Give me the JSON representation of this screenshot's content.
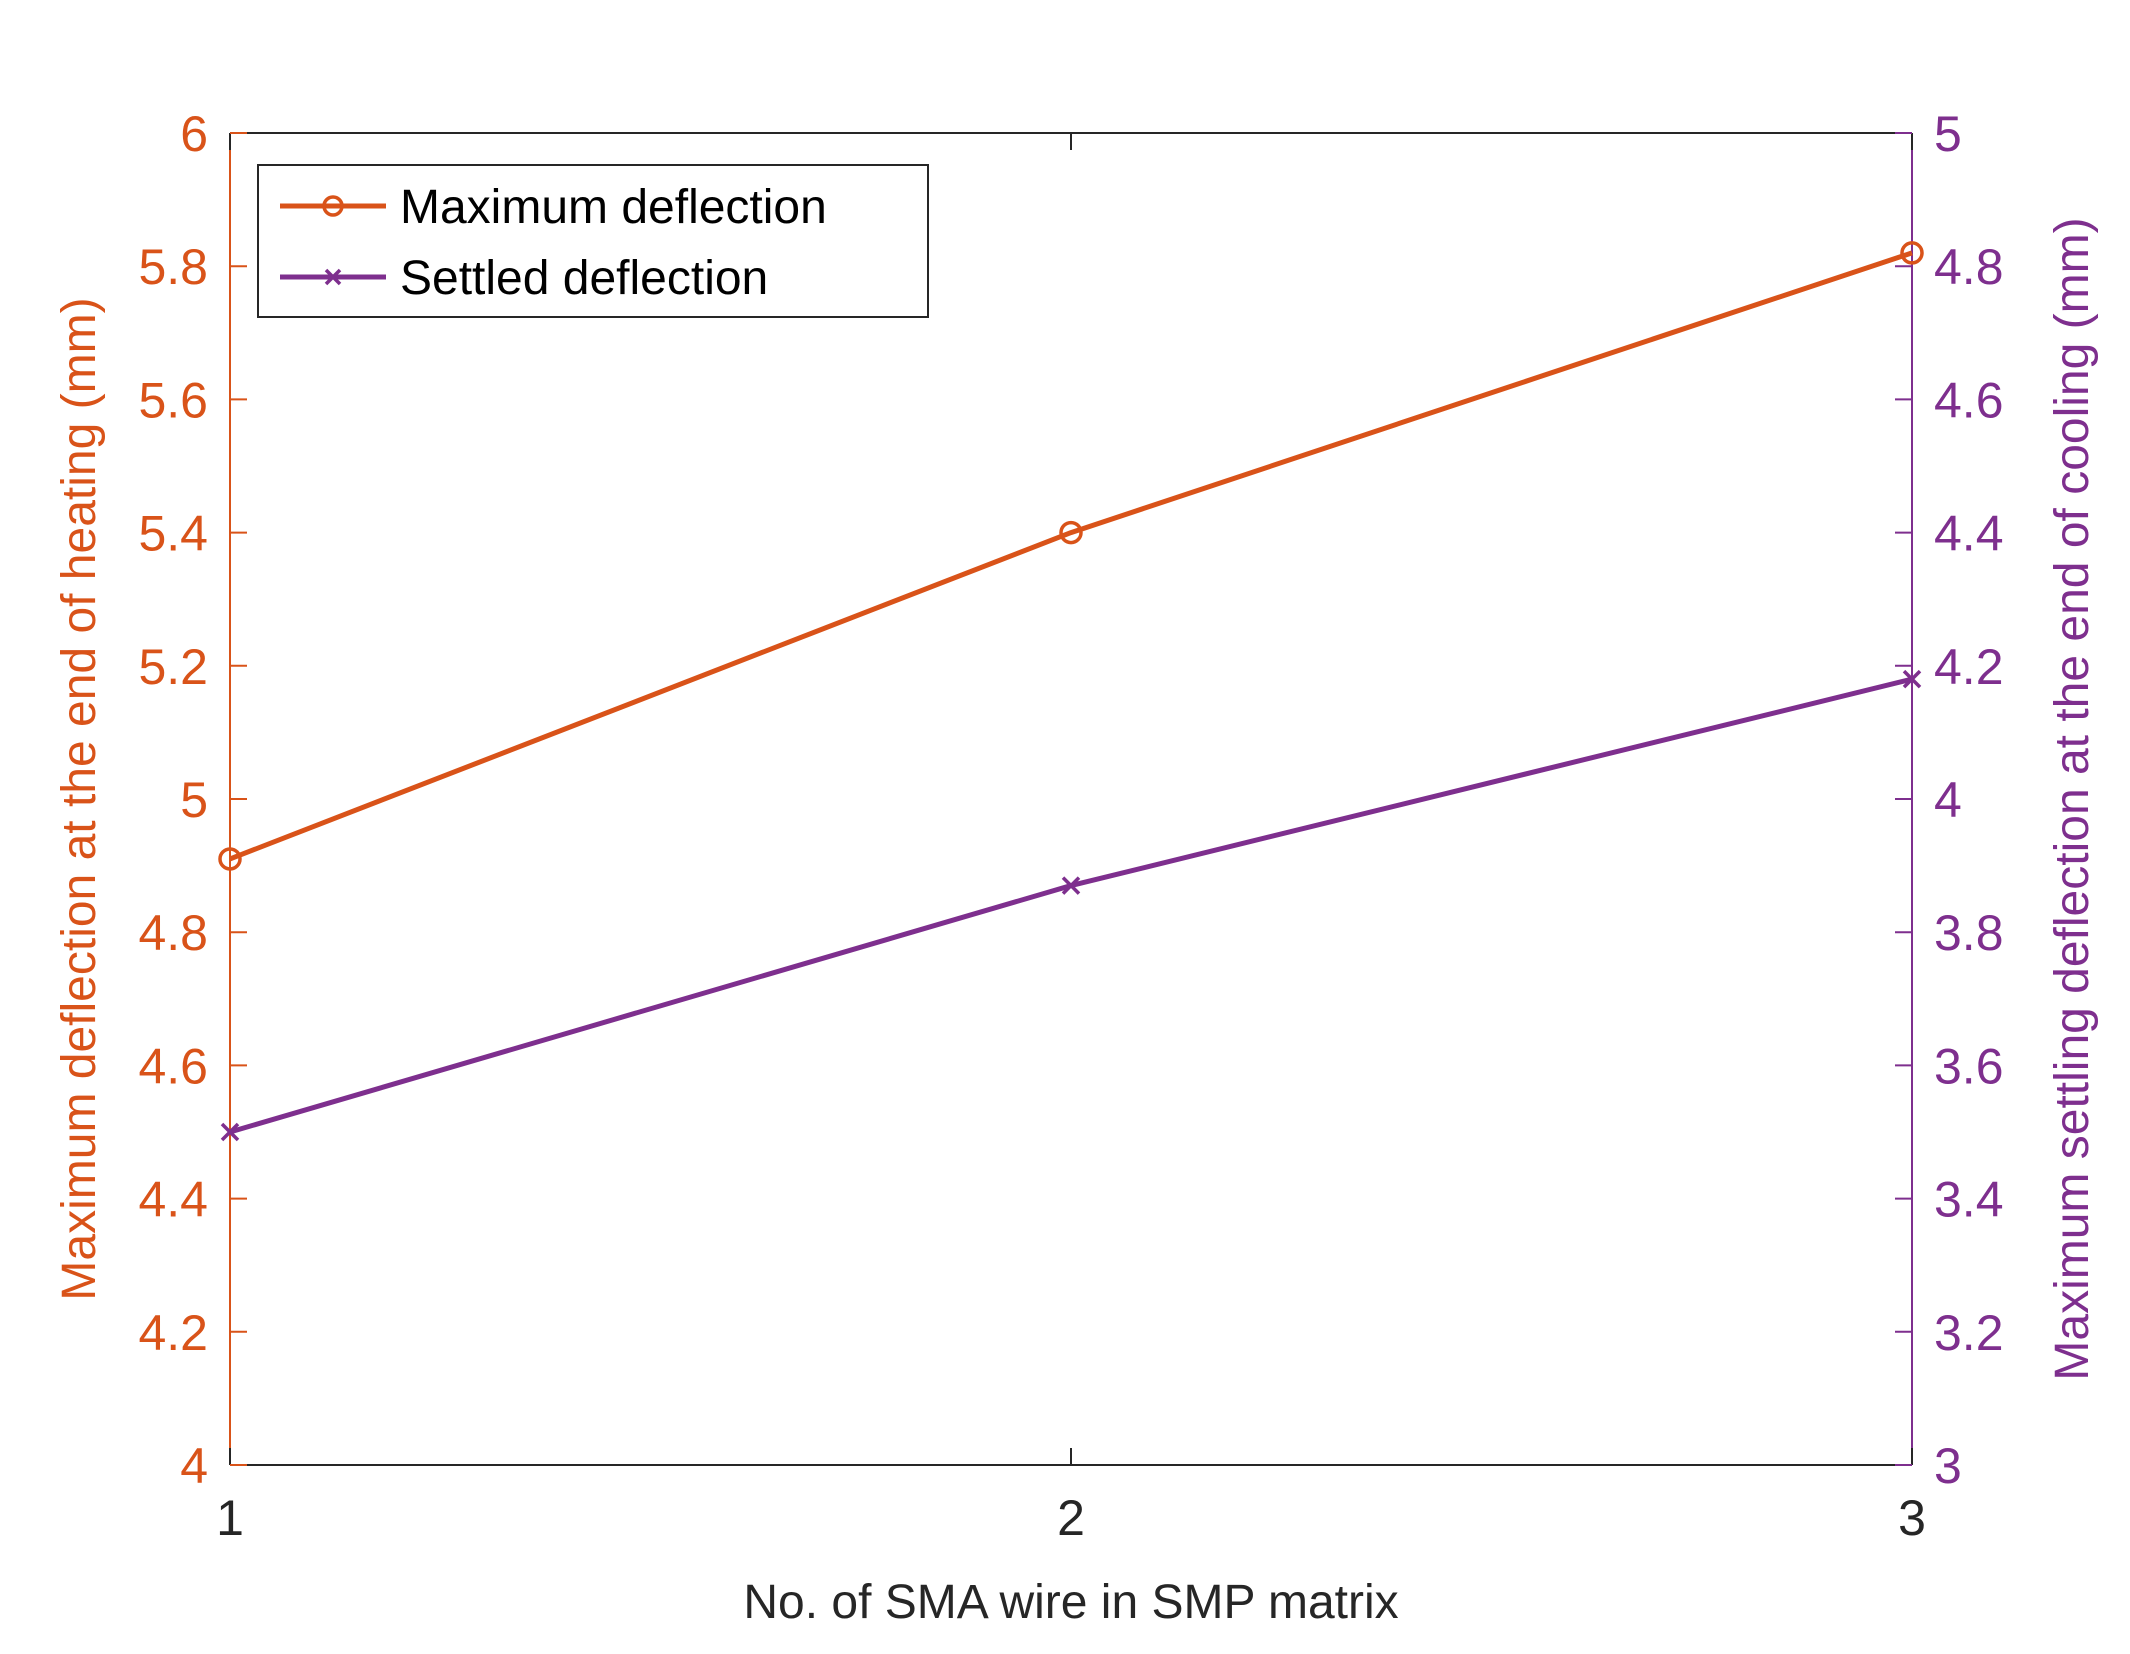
{
  "chart_data": {
    "type": "line",
    "x": [
      1,
      2,
      3
    ],
    "xlabel": "No. of SMA wire in SMP matrix",
    "xlim": [
      1,
      3
    ],
    "xticks": [
      "1",
      "2",
      "3"
    ],
    "ylabel_left": "Maximum deflection at the end of heating (mm)",
    "ylim_left": [
      4,
      6
    ],
    "yticks_left": [
      "4",
      "4.2",
      "4.4",
      "4.6",
      "4.8",
      "5",
      "5.2",
      "5.4",
      "5.6",
      "5.8",
      "6"
    ],
    "ylabel_right": "Maximum settling deflection at the end of cooling (mm)",
    "ylim_right": [
      3,
      5
    ],
    "yticks_right": [
      "3",
      "3.2",
      "3.4",
      "3.6",
      "3.8",
      "4",
      "4.2",
      "4.4",
      "4.6",
      "4.8",
      "5"
    ],
    "series": [
      {
        "name": "Maximum deflection",
        "axis": "left",
        "marker": "circle",
        "color": "#D95319",
        "values": [
          4.91,
          5.4,
          5.82
        ]
      },
      {
        "name": "Settled deflection",
        "axis": "right",
        "marker": "x",
        "color": "#7E2F8E",
        "values": [
          3.5,
          3.87,
          4.18
        ]
      }
    ],
    "legend_position": "top-left",
    "grid": false
  }
}
